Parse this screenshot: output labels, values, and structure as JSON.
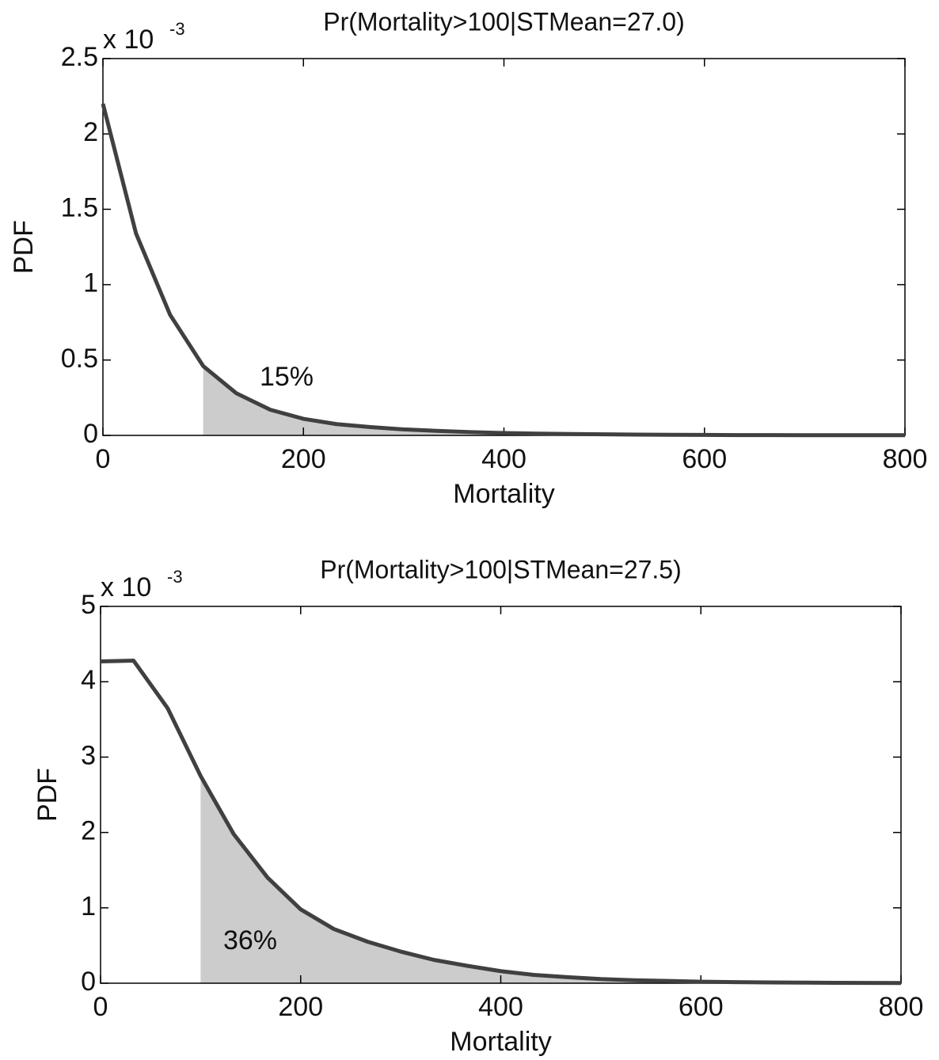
{
  "chart_data": [
    {
      "type": "line",
      "title": "Pr(Mortality>100|STMean=27.0)",
      "x_label": "Mortality",
      "y_label": "PDF",
      "y_multiplier": "x 10",
      "y_multiplier_exponent": "-3",
      "annotation": "15%",
      "x": [
        0,
        33,
        67,
        100,
        133,
        167,
        200,
        233,
        267,
        300,
        333,
        367,
        400,
        433,
        467,
        500,
        533,
        567,
        600,
        633,
        667,
        700,
        733,
        767,
        800
      ],
      "series": [
        {
          "color": "#404040",
          "values": [
            2.2,
            1.34,
            0.8,
            0.46,
            0.28,
            0.17,
            0.11,
            0.075,
            0.055,
            0.04,
            0.03,
            0.022,
            0.016,
            0.012,
            0.009,
            0.007,
            0.005,
            0.004,
            0.003,
            0.002,
            0.002,
            0.001,
            0.001,
            0.001,
            0.001
          ]
        }
      ],
      "fill_from": 100,
      "fill_color": "#cccccc",
      "xlim": [
        0,
        800
      ],
      "xticks": [
        0,
        200,
        400,
        600,
        800
      ],
      "ylim": [
        0,
        2.5
      ],
      "yticks": [
        0,
        0.5,
        1,
        1.5,
        2,
        2.5
      ]
    },
    {
      "type": "line",
      "title": "Pr(Mortality>100|STMean=27.5)",
      "x_label": "Mortality",
      "y_label": "PDF",
      "y_multiplier": "x 10",
      "y_multiplier_exponent": "-3",
      "annotation": "36%",
      "x": [
        0,
        33,
        67,
        100,
        133,
        167,
        200,
        233,
        267,
        300,
        333,
        367,
        400,
        433,
        467,
        500,
        533,
        567,
        600,
        633,
        667,
        700,
        733,
        767,
        800
      ],
      "series": [
        {
          "color": "#404040",
          "values": [
            4.27,
            4.28,
            3.65,
            2.75,
            1.98,
            1.4,
            0.98,
            0.72,
            0.55,
            0.42,
            0.31,
            0.23,
            0.16,
            0.11,
            0.08,
            0.055,
            0.04,
            0.03,
            0.02,
            0.015,
            0.01,
            0.008,
            0.005,
            0.004,
            0.003
          ]
        }
      ],
      "fill_from": 100,
      "fill_color": "#cccccc",
      "xlim": [
        0,
        800
      ],
      "xticks": [
        0,
        200,
        400,
        600,
        800
      ],
      "ylim": [
        0,
        5
      ],
      "yticks": [
        0,
        1,
        2,
        3,
        4,
        5
      ]
    }
  ]
}
